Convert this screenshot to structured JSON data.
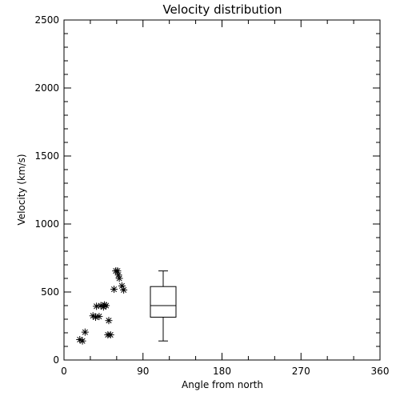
{
  "chart_data": {
    "type": "scatter",
    "title": "Velocity distribution",
    "xlabel": "Angle from north",
    "ylabel": "Velocity (km/s)",
    "xlim": [
      0,
      360
    ],
    "ylim": [
      0,
      2500
    ],
    "x_ticks": [
      0,
      90,
      180,
      270,
      360
    ],
    "y_ticks": [
      0,
      500,
      1000,
      1500,
      2000,
      2500
    ],
    "grid": false,
    "points": [
      {
        "x": 18,
        "y": 150
      },
      {
        "x": 21,
        "y": 140
      },
      {
        "x": 24,
        "y": 205
      },
      {
        "x": 33,
        "y": 325
      },
      {
        "x": 36,
        "y": 315
      },
      {
        "x": 37,
        "y": 395
      },
      {
        "x": 40,
        "y": 320
      },
      {
        "x": 42,
        "y": 400
      },
      {
        "x": 45,
        "y": 390
      },
      {
        "x": 46,
        "y": 405
      },
      {
        "x": 48,
        "y": 400
      },
      {
        "x": 50,
        "y": 185
      },
      {
        "x": 51,
        "y": 290
      },
      {
        "x": 53,
        "y": 185
      },
      {
        "x": 57,
        "y": 520
      },
      {
        "x": 59,
        "y": 655
      },
      {
        "x": 61,
        "y": 655
      },
      {
        "x": 62,
        "y": 625
      },
      {
        "x": 63,
        "y": 600
      },
      {
        "x": 66,
        "y": 545
      },
      {
        "x": 68,
        "y": 515
      }
    ],
    "boxplot": {
      "x": 113,
      "whisker_low": 140,
      "q1": 315,
      "median": 400,
      "q3": 540,
      "whisker_high": 655
    }
  }
}
